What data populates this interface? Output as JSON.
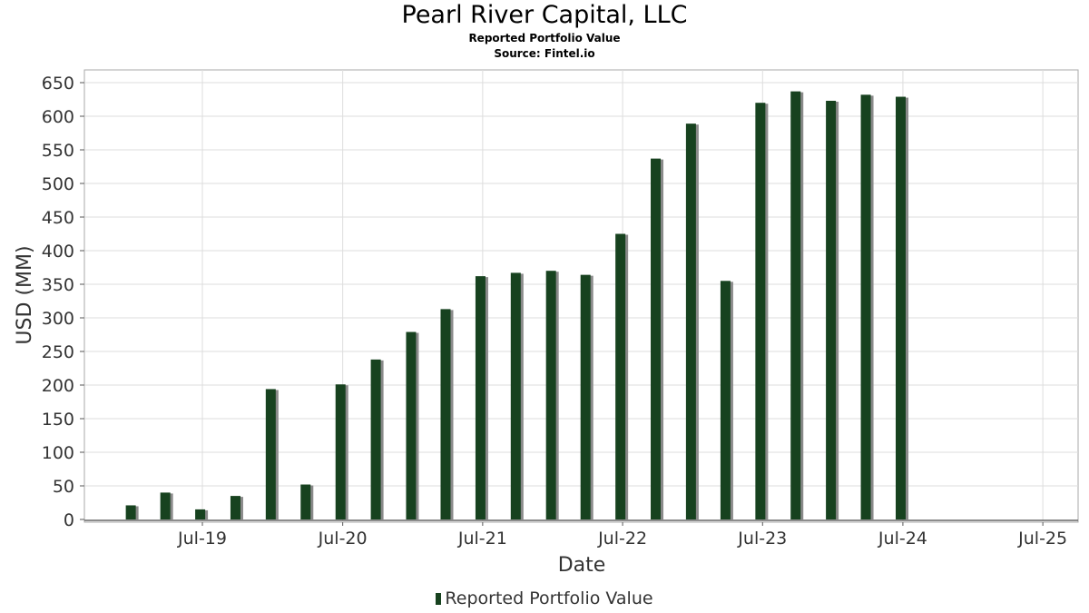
{
  "title": "Pearl River Capital, LLC",
  "subtitle": "Reported Portfolio Value",
  "source": "Source: Fintel.io",
  "colors": {
    "bar": "#17421f",
    "shadow": "#8a8a8a",
    "grid": "#dddddd",
    "axis": "#555555"
  },
  "chart_data": {
    "type": "bar",
    "xlabel": "Date",
    "ylabel": "USD (MM)",
    "ylim": [
      0,
      665
    ],
    "yticks": [
      0,
      50,
      100,
      150,
      200,
      250,
      300,
      350,
      400,
      450,
      500,
      550,
      600,
      650
    ],
    "xlim": [
      "2018-09-01",
      "2025-10-01"
    ],
    "xticks": [
      {
        "label": "Jul-19",
        "date": "2019-07-01"
      },
      {
        "label": "Jul-20",
        "date": "2020-07-01"
      },
      {
        "label": "Jul-21",
        "date": "2021-07-01"
      },
      {
        "label": "Jul-22",
        "date": "2022-07-01"
      },
      {
        "label": "Jul-23",
        "date": "2023-07-01"
      },
      {
        "label": "Jul-24",
        "date": "2024-07-01"
      },
      {
        "label": "Jul-25",
        "date": "2025-07-01"
      }
    ],
    "grid": true,
    "legend_position": "bottom",
    "series": [
      {
        "name": "Reported Portfolio Value",
        "points": [
          {
            "date": "2018-12-31",
            "value": 21
          },
          {
            "date": "2019-03-31",
            "value": 40
          },
          {
            "date": "2019-06-30",
            "value": 15
          },
          {
            "date": "2019-09-30",
            "value": 35
          },
          {
            "date": "2019-12-31",
            "value": 194
          },
          {
            "date": "2020-03-31",
            "value": 52
          },
          {
            "date": "2020-06-30",
            "value": 201
          },
          {
            "date": "2020-09-30",
            "value": 238
          },
          {
            "date": "2020-12-31",
            "value": 279
          },
          {
            "date": "2021-03-31",
            "value": 313
          },
          {
            "date": "2021-06-30",
            "value": 362
          },
          {
            "date": "2021-09-30",
            "value": 367
          },
          {
            "date": "2021-12-31",
            "value": 370
          },
          {
            "date": "2022-03-31",
            "value": 364
          },
          {
            "date": "2022-06-30",
            "value": 425
          },
          {
            "date": "2022-09-30",
            "value": 537
          },
          {
            "date": "2022-12-31",
            "value": 589
          },
          {
            "date": "2023-03-31",
            "value": 355
          },
          {
            "date": "2023-06-30",
            "value": 620
          },
          {
            "date": "2023-09-30",
            "value": 637
          },
          {
            "date": "2023-12-31",
            "value": 623
          },
          {
            "date": "2024-03-31",
            "value": 632
          },
          {
            "date": "2024-06-30",
            "value": 629
          }
        ]
      }
    ]
  }
}
